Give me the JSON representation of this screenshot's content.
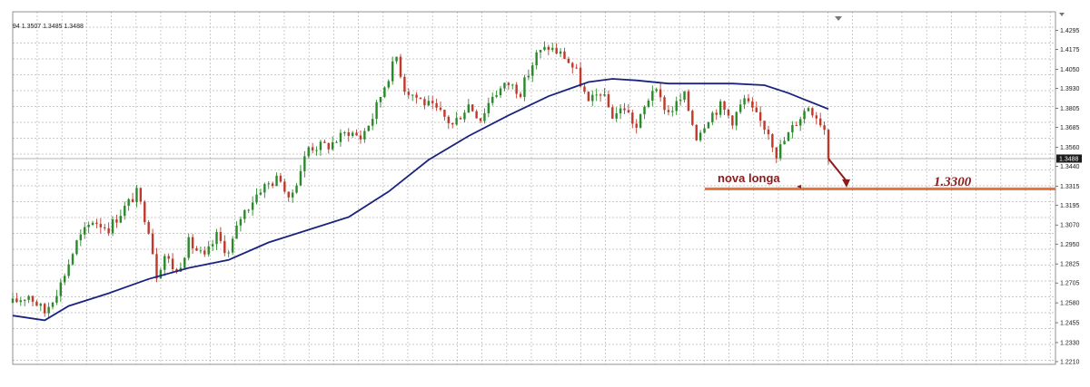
{
  "ohlc_readout": "94 1.3507 1.3485 1.3488",
  "colors": {
    "bull": "#2a8a2a",
    "bear": "#c0392b",
    "ma": "#1a237e",
    "grid": "#b8b8b8",
    "level": "#e8743b",
    "annotation": "#8b1a1a",
    "current_line": "#9a9a9a",
    "price_box": "#1c1c1c"
  },
  "chart_data": {
    "type": "candlestick",
    "grid": true,
    "ylim": [
      1.221,
      1.4295
    ],
    "y_ticks": [
      1.4295,
      1.4175,
      1.405,
      1.393,
      1.3805,
      1.3685,
      1.356,
      1.344,
      1.3315,
      1.3195,
      1.307,
      1.295,
      1.2825,
      1.2705,
      1.258,
      1.2455,
      1.233,
      1.221
    ],
    "y_tick_labels": [
      "1.4295",
      "1.4175",
      "1.4050",
      "1.3930",
      "1.3805",
      "1.3685",
      "1.3560",
      "1.3440",
      "1.3315",
      "1.3195",
      "1.3070",
      "1.2950",
      "1.2825",
      "1.2705",
      "1.2580",
      "1.2455",
      "1.2330",
      "1.2210"
    ],
    "current_price": 1.3488,
    "current_price_label": "1.3488",
    "support_level": 1.33,
    "support_level_label": "1.3300",
    "annotation": "nova longa",
    "price_path_anchors": [
      [
        0,
        1.258
      ],
      [
        4,
        1.263
      ],
      [
        8,
        1.252
      ],
      [
        12,
        1.27
      ],
      [
        16,
        1.296
      ],
      [
        20,
        1.31
      ],
      [
        24,
        1.305
      ],
      [
        28,
        1.318
      ],
      [
        31,
        1.327
      ],
      [
        34,
        1.305
      ],
      [
        36,
        1.276
      ],
      [
        38,
        1.288
      ],
      [
        41,
        1.277
      ],
      [
        44,
        1.296
      ],
      [
        48,
        1.286
      ],
      [
        51,
        1.3
      ],
      [
        54,
        1.289
      ],
      [
        57,
        1.312
      ],
      [
        62,
        1.33
      ],
      [
        67,
        1.337
      ],
      [
        69,
        1.321
      ],
      [
        74,
        1.356
      ],
      [
        79,
        1.357
      ],
      [
        84,
        1.366
      ],
      [
        87,
        1.362
      ],
      [
        90,
        1.375
      ],
      [
        93,
        1.395
      ],
      [
        96,
        1.413
      ],
      [
        98,
        1.393
      ],
      [
        103,
        1.384
      ],
      [
        107,
        1.377
      ],
      [
        110,
        1.37
      ],
      [
        114,
        1.383
      ],
      [
        117,
        1.374
      ],
      [
        120,
        1.389
      ],
      [
        124,
        1.396
      ],
      [
        127,
        1.391
      ],
      [
        131,
        1.414
      ],
      [
        134,
        1.419
      ],
      [
        138,
        1.413
      ],
      [
        141,
        1.403
      ],
      [
        144,
        1.383
      ],
      [
        147,
        1.391
      ],
      [
        150,
        1.376
      ],
      [
        153,
        1.381
      ],
      [
        156,
        1.368
      ],
      [
        160,
        1.393
      ],
      [
        164,
        1.378
      ],
      [
        168,
        1.388
      ],
      [
        171,
        1.363
      ],
      [
        174,
        1.375
      ],
      [
        177,
        1.382
      ],
      [
        180,
        1.373
      ],
      [
        183,
        1.386
      ],
      [
        186,
        1.375
      ],
      [
        189,
        1.366
      ],
      [
        191,
        1.352
      ],
      [
        193,
        1.36
      ],
      [
        196,
        1.372
      ],
      [
        199,
        1.382
      ],
      [
        201,
        1.376
      ],
      [
        203,
        1.368
      ],
      [
        204,
        1.3488
      ]
    ],
    "moving_average": {
      "x": [
        0,
        8,
        14,
        24,
        34,
        44,
        54,
        64,
        74,
        84,
        94,
        104,
        114,
        124,
        134,
        144,
        150,
        156,
        164,
        172,
        180,
        188,
        194,
        198,
        204
      ],
      "y": [
        1.25,
        1.247,
        1.256,
        1.264,
        1.273,
        1.28,
        1.285,
        1.296,
        1.304,
        1.312,
        1.328,
        1.348,
        1.363,
        1.376,
        1.388,
        1.397,
        1.399,
        1.398,
        1.396,
        1.396,
        1.396,
        1.395,
        1.39,
        1.386,
        1.38
      ]
    }
  }
}
